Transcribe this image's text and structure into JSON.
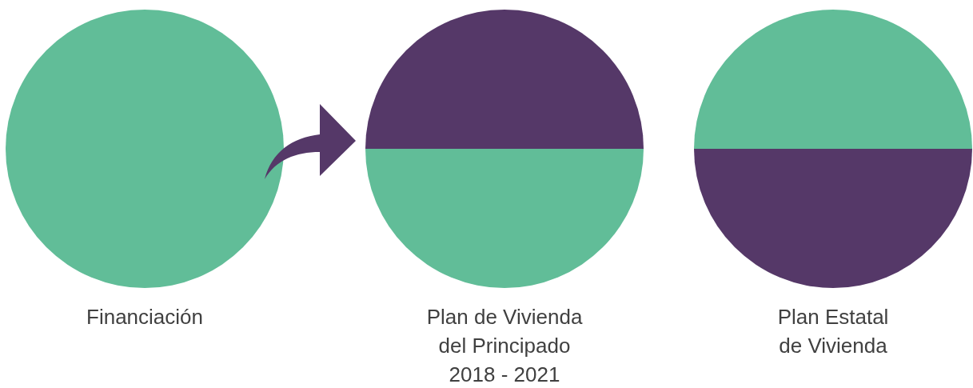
{
  "chart_data": [
    {
      "type": "pie",
      "title": "Financiación",
      "categories": [
        null
      ],
      "values": [
        100
      ],
      "colors": [
        "#61bd98"
      ]
    },
    {
      "type": "pie",
      "title": "Plan de Vivienda\ndel Principado\n2018 - 2021",
      "categories": [
        null,
        null
      ],
      "values": [
        50,
        50
      ],
      "colors": [
        "#553868",
        "#61bd98"
      ]
    },
    {
      "type": "pie",
      "title": "Plan Estatal\nde Vivienda",
      "categories": [
        null,
        null
      ],
      "values": [
        50,
        50
      ],
      "colors": [
        "#61bd98",
        "#553868"
      ]
    }
  ]
}
